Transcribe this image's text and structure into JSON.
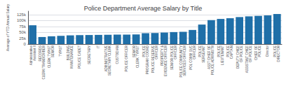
{
  "chart_data": {
    "type": "bar",
    "title": "Police Department Average Salary by Title",
    "ylabel": "Average of YTD Annual Salary",
    "categories": [
      "Administrative\nAssistant II",
      "RECORDS\nCLERK/TRANSCRIBER",
      "CLERK TYPIST\nSENIOR",
      "TYPIST",
      "BUILDING\nMAINTENANCE",
      "POLICE CADET",
      "SECRETARY",
      "IT",
      "ADMINISTRATIVE\nSECRETARY CLERK",
      "CUSTODIAN",
      "POLICE OFFICER",
      "SENIOR\nCLERK TYPIST",
      "POLICE\nPROGRAM COORD",
      "POLICE RESERVE\nOFFICER",
      "PROPERTY &\nEVIDENCE OFFICER",
      "SENIOR POLICE\nOFFICER",
      "POLICE COMMUNITY\nSERVICES OFFICER",
      "POL COMM SVC\nOFFICER",
      "POLICE\nSERGEANT",
      "ASST CHIEF OF\nPOLICE ADMINISTR",
      "POLICE\nLIEUTENANT",
      "POLICE\nCAPTAIN",
      "DEPUTY CHIEF\nOF POLICE",
      "ASSISTANT CHIEF\nOF POLICE",
      "CHIEF OF\nPOLICE",
      "Director",
      "POLICE\nDIRECTOR"
    ],
    "values": [
      80000,
      30000,
      33000,
      35000,
      37000,
      38000,
      38500,
      39000,
      39500,
      40000,
      40500,
      41000,
      46000,
      47000,
      49000,
      51000,
      52000,
      60000,
      83000,
      102000,
      107000,
      110000,
      115000,
      118000,
      120000,
      122000,
      128000
    ],
    "color": "#1F6FA8",
    "ylim": [
      0,
      140000
    ],
    "yticks": [
      0,
      {
        "value": 25000,
        "label": "25k"
      },
      {
        "value": 50000,
        "label": "50k"
      },
      {
        "value": 75000,
        "label": "75k"
      },
      {
        "value": 100000,
        "label": "100k"
      },
      {
        "value": 125000,
        "label": "125k"
      }
    ],
    "grid": true
  }
}
